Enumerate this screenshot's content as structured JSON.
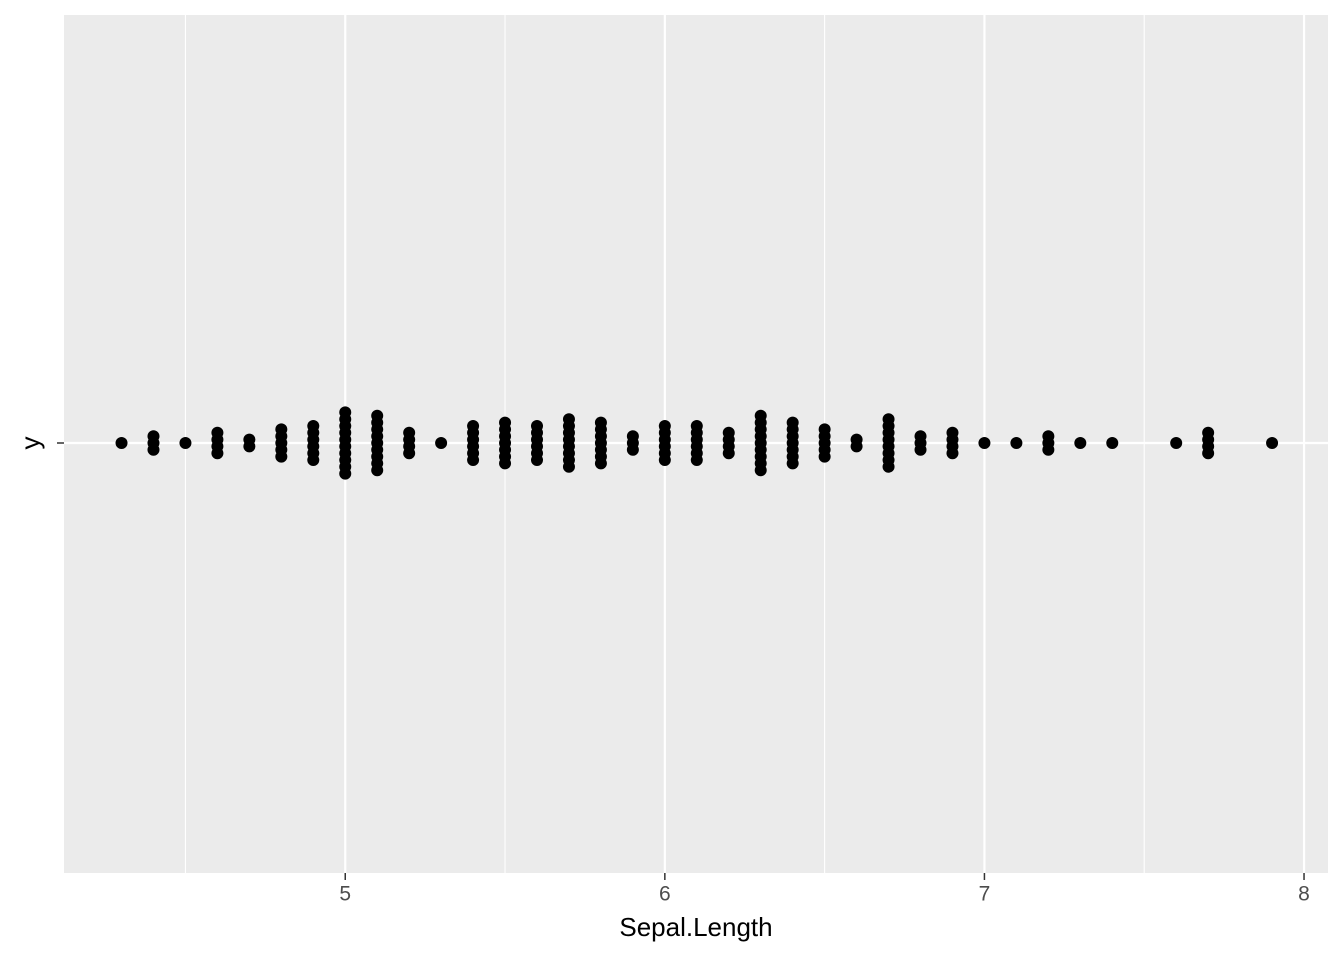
{
  "chart_data": {
    "type": "dotplot",
    "x_label": "Sepal.Length",
    "y_label": "y",
    "x": [
      4.3,
      4.4,
      4.5,
      4.6,
      4.7,
      4.8,
      4.9,
      5.0,
      5.1,
      5.2,
      5.3,
      5.4,
      5.5,
      5.6,
      5.7,
      5.8,
      5.9,
      6.0,
      6.1,
      6.2,
      6.3,
      6.4,
      6.5,
      6.6,
      6.7,
      6.8,
      6.9,
      7.0,
      7.1,
      7.2,
      7.3,
      7.4,
      7.6,
      7.7,
      7.9
    ],
    "counts": [
      1,
      3,
      1,
      4,
      2,
      5,
      6,
      10,
      9,
      4,
      1,
      6,
      7,
      6,
      8,
      7,
      3,
      6,
      6,
      4,
      9,
      7,
      5,
      2,
      8,
      3,
      4,
      1,
      1,
      3,
      1,
      1,
      1,
      4,
      1
    ],
    "color": "#000000",
    "xlim": [
      4.12,
      8.075
    ],
    "xticks": [
      5,
      6,
      7,
      8
    ],
    "grid": true
  }
}
